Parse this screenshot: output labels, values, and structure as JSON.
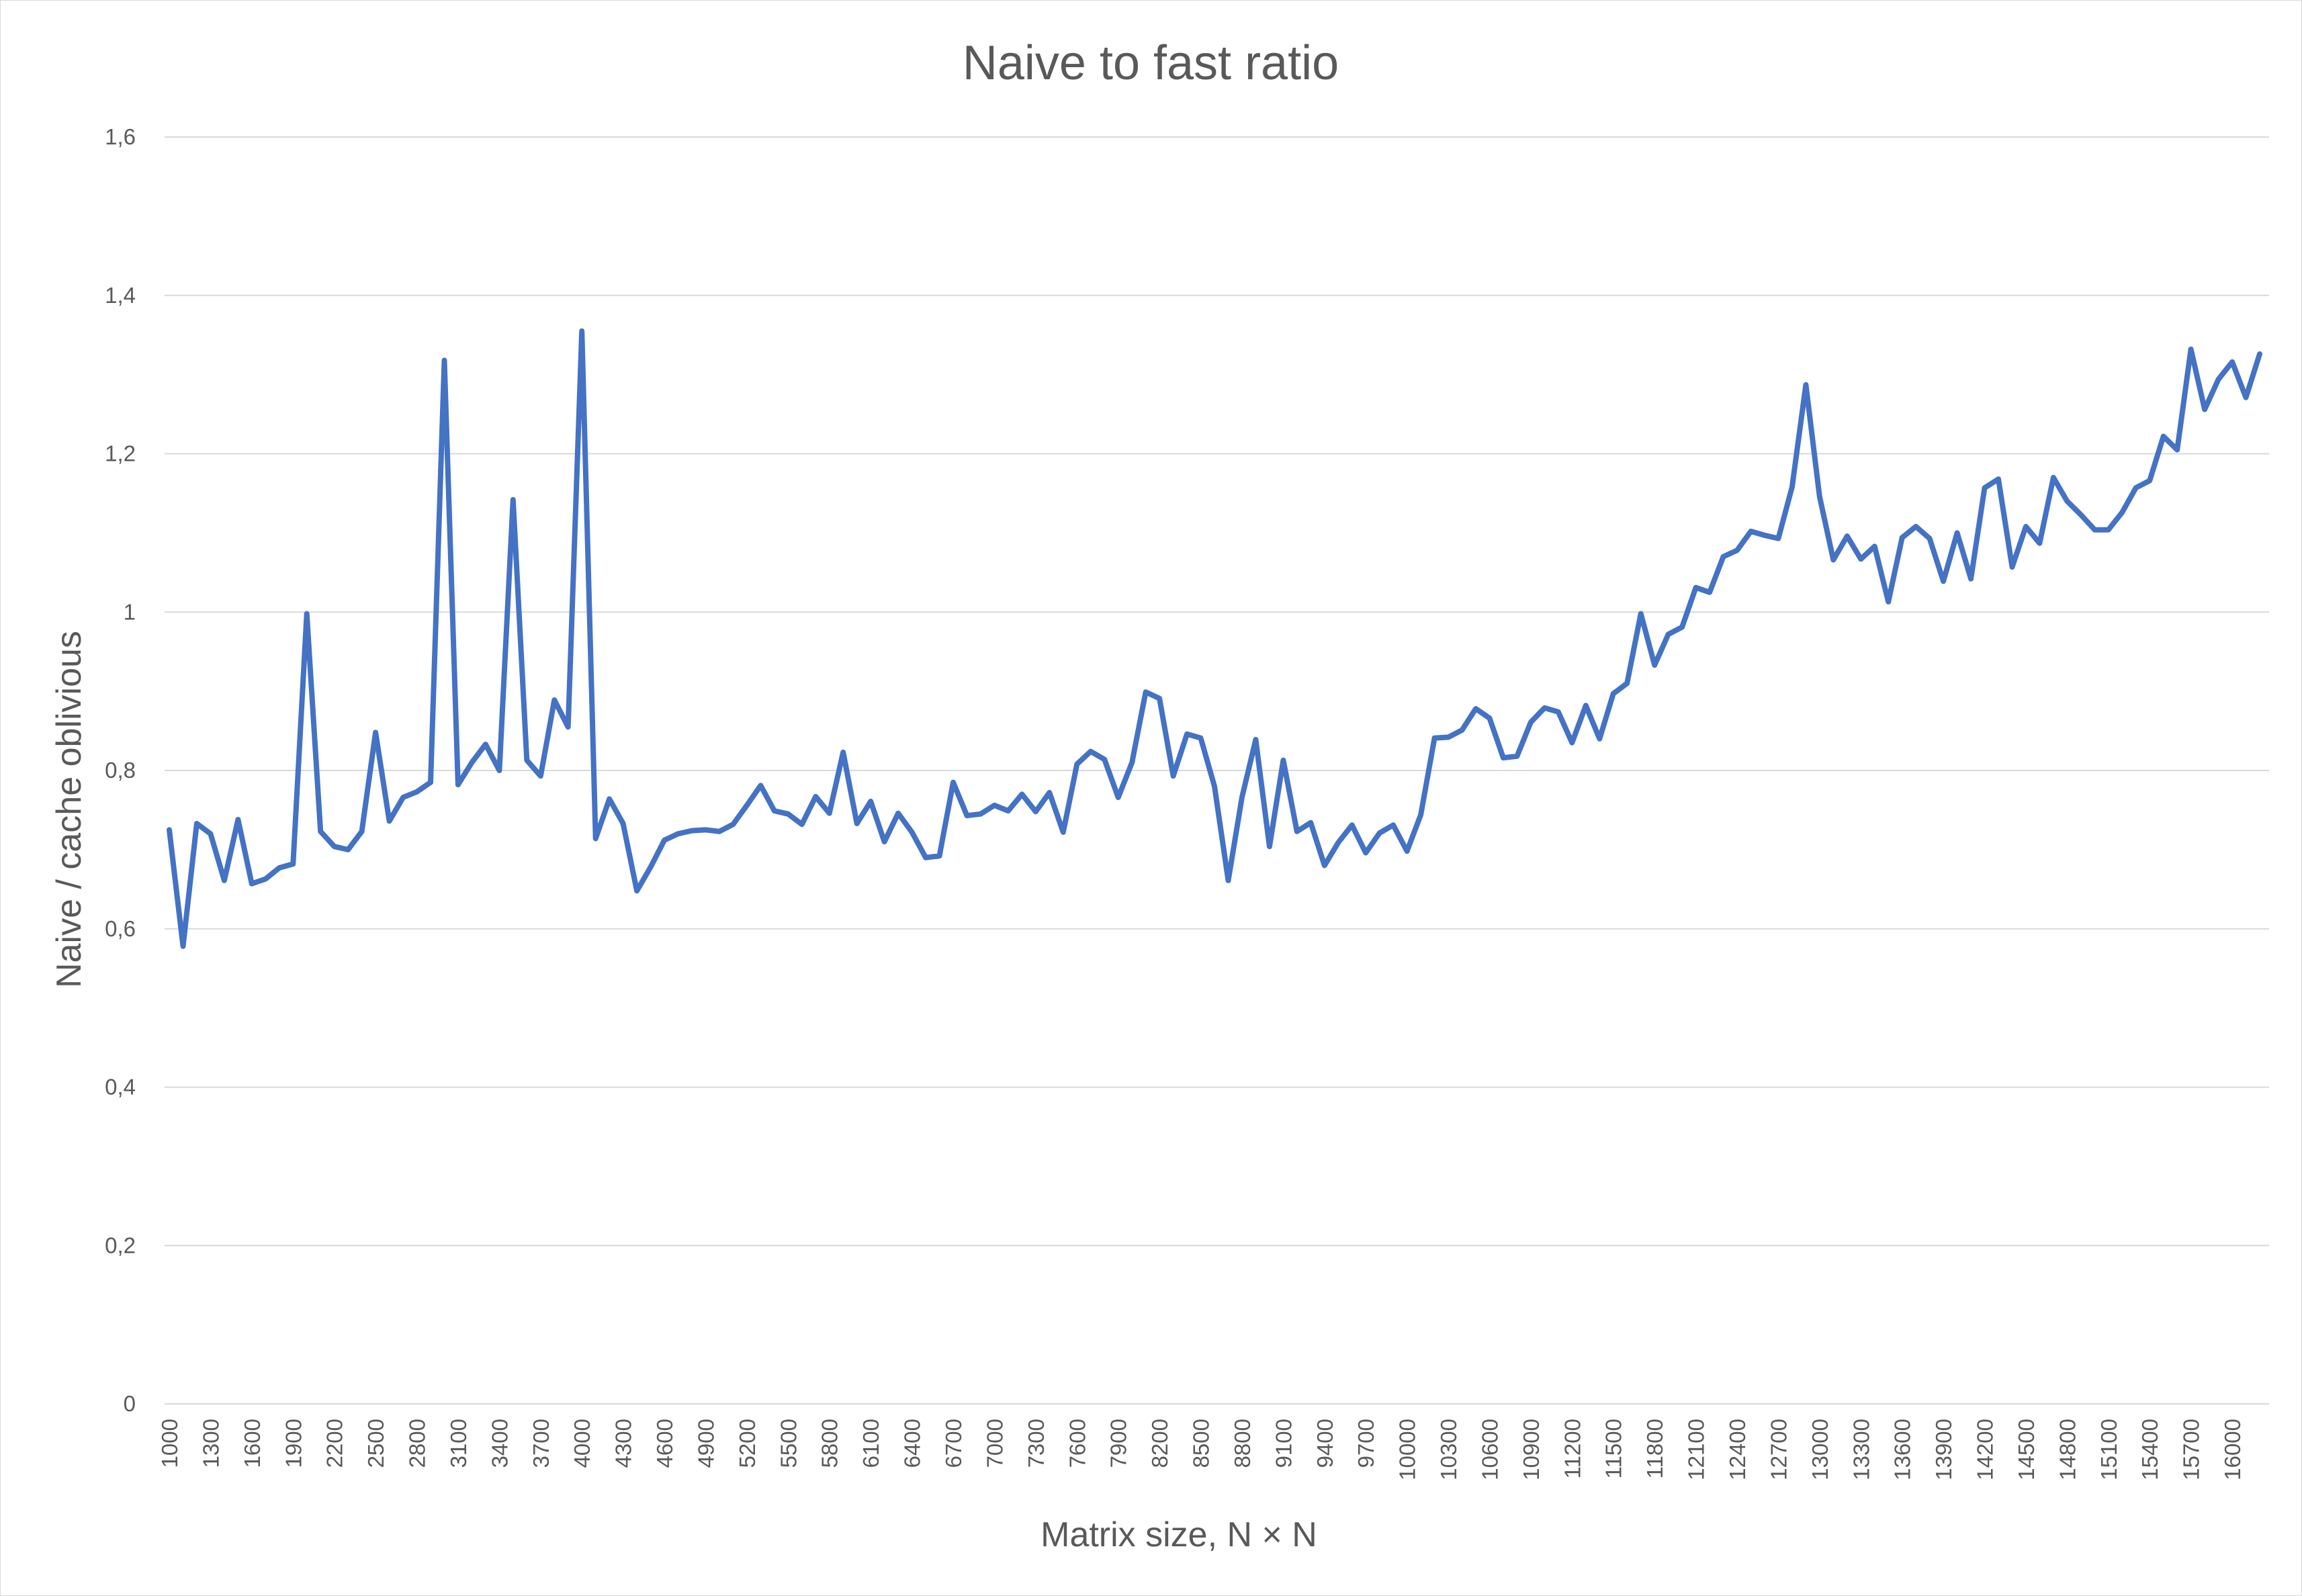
{
  "chart_data": {
    "type": "line",
    "title": "Naive to fast ratio",
    "xlabel": "Matrix size, N × N",
    "ylabel": "Naive / cache oblivious",
    "ylim": [
      0,
      1.6
    ],
    "grid": true,
    "legend": "none",
    "series_color": "#4472c4",
    "y_ticks": [
      "0",
      "0,2",
      "0,4",
      "0,6",
      "0,8",
      "1",
      "1,2",
      "1,4",
      "1,6"
    ],
    "x_tick_labels": [
      "1000",
      "1300",
      "1600",
      "1900",
      "2200",
      "2500",
      "2800",
      "3100",
      "3400",
      "3700",
      "4000",
      "4300",
      "4600",
      "4900",
      "5200",
      "5500",
      "5800",
      "6100",
      "6400",
      "6700",
      "7000",
      "7300",
      "7600",
      "7900",
      "8200",
      "8500",
      "8800",
      "9100",
      "9400",
      "9700",
      "10000",
      "10300",
      "10600",
      "10900",
      "11200",
      "11500",
      "11800",
      "12100",
      "12400",
      "12700",
      "13000",
      "13300",
      "13600",
      "13900",
      "14200",
      "14500",
      "14800",
      "15100",
      "15400",
      "15700",
      "16000"
    ],
    "x": [
      1000,
      1100,
      1200,
      1300,
      1400,
      1500,
      1600,
      1700,
      1800,
      1900,
      2000,
      2100,
      2200,
      2300,
      2400,
      2500,
      2600,
      2700,
      2800,
      2900,
      3000,
      3100,
      3200,
      3300,
      3400,
      3500,
      3600,
      3700,
      3800,
      3900,
      4000,
      4100,
      4200,
      4300,
      4400,
      4500,
      4600,
      4700,
      4800,
      4900,
      5000,
      5100,
      5200,
      5300,
      5400,
      5500,
      5600,
      5700,
      5800,
      5900,
      6000,
      6100,
      6200,
      6300,
      6400,
      6500,
      6600,
      6700,
      6800,
      6900,
      7000,
      7100,
      7200,
      7300,
      7400,
      7500,
      7600,
      7700,
      7800,
      7900,
      8000,
      8100,
      8200,
      8300,
      8400,
      8500,
      8600,
      8700,
      8800,
      8900,
      9000,
      9100,
      9200,
      9300,
      9400,
      9500,
      9600,
      9700,
      9800,
      9900,
      10000,
      10100,
      10200,
      10300,
      10400,
      10500,
      10600,
      10700,
      10800,
      10900,
      11000,
      11100,
      11200,
      11300,
      11400,
      11500,
      11600,
      11700,
      11800,
      11900,
      12000,
      12100,
      12200,
      12300,
      12400,
      12500,
      12600,
      12700,
      12800,
      12900,
      13000,
      13100,
      13200,
      13300,
      13400,
      13500,
      13600,
      13700,
      13800,
      13900,
      14000,
      14100,
      14200,
      14300,
      14400,
      14500,
      14600,
      14700,
      14800,
      14900,
      15000,
      15100,
      15200,
      15300,
      15400,
      15500,
      15600,
      15700,
      15800,
      15900,
      16000,
      16100,
      16200
    ],
    "values": [
      0.725,
      0.578,
      0.733,
      0.72,
      0.661,
      0.738,
      0.657,
      0.663,
      0.677,
      0.682,
      0.998,
      0.723,
      0.704,
      0.7,
      0.723,
      0.848,
      0.736,
      0.766,
      0.773,
      0.785,
      1.318,
      0.782,
      0.81,
      0.833,
      0.8,
      1.142,
      0.813,
      0.793,
      0.889,
      0.855,
      1.355,
      0.714,
      0.764,
      0.733,
      0.648,
      0.678,
      0.712,
      0.72,
      0.724,
      0.725,
      0.723,
      0.732,
      0.756,
      0.781,
      0.749,
      0.745,
      0.732,
      0.767,
      0.746,
      0.823,
      0.733,
      0.761,
      0.71,
      0.746,
      0.722,
      0.69,
      0.692,
      0.785,
      0.743,
      0.745,
      0.756,
      0.749,
      0.77,
      0.748,
      0.772,
      0.722,
      0.808,
      0.824,
      0.814,
      0.766,
      0.81,
      0.899,
      0.891,
      0.793,
      0.846,
      0.841,
      0.78,
      0.661,
      0.766,
      0.839,
      0.704,
      0.813,
      0.723,
      0.734,
      0.68,
      0.709,
      0.731,
      0.696,
      0.721,
      0.731,
      0.698,
      0.744,
      0.841,
      0.842,
      0.851,
      0.878,
      0.866,
      0.816,
      0.818,
      0.861,
      0.879,
      0.874,
      0.835,
      0.882,
      0.84,
      0.897,
      0.91,
      0.998,
      0.933,
      0.972,
      0.981,
      1.031,
      1.025,
      1.07,
      1.078,
      1.102,
      1.097,
      1.093,
      1.158,
      1.287,
      1.146,
      1.066,
      1.096,
      1.067,
      1.083,
      1.013,
      1.094,
      1.108,
      1.093,
      1.039,
      1.1,
      1.042,
      1.157,
      1.168,
      1.057,
      1.108,
      1.087,
      1.17,
      1.14,
      1.123,
      1.104,
      1.104,
      1.126,
      1.157,
      1.166,
      1.222,
      1.205,
      1.332,
      1.256,
      1.294,
      1.316,
      1.271,
      1.326
    ]
  }
}
